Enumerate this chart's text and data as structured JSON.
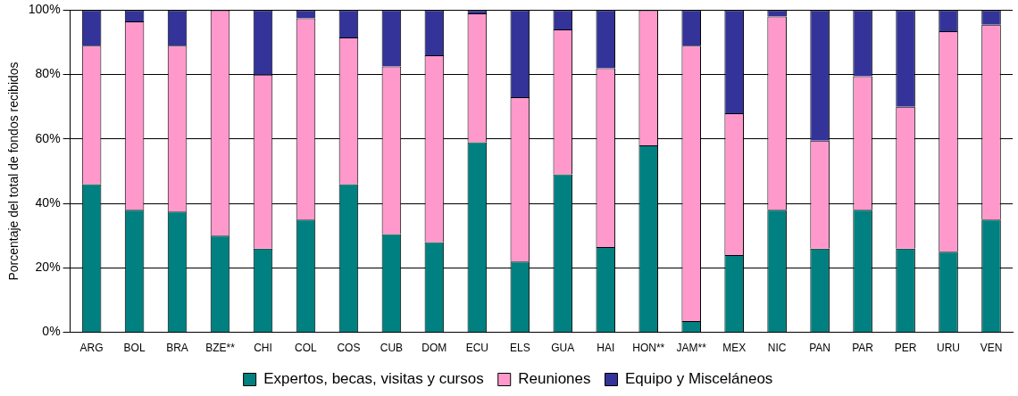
{
  "chart_data": {
    "type": "bar",
    "stacked": true,
    "ylabel": "Porcentaje del total de fondos recibidos",
    "categories": [
      "ARG",
      "BOL",
      "BRA",
      "BZE**",
      "CHI",
      "COL",
      "COS",
      "CUB",
      "DOM",
      "ECU",
      "ELS",
      "GUA",
      "HAI",
      "HON**",
      "JAM**",
      "MEX",
      "NIC",
      "PAN",
      "PAR",
      "PER",
      "URU",
      "VEN"
    ],
    "series": [
      {
        "name": "Expertos, becas, visitas y cursos",
        "color": "#008080",
        "values": [
          46,
          38,
          37.5,
          30,
          26,
          35,
          46,
          30.5,
          28,
          59,
          22,
          49,
          26.5,
          58,
          3.5,
          24,
          38,
          26,
          38,
          26,
          25,
          35
        ]
      },
      {
        "name": "Reuniones",
        "color": "#ff99cc",
        "values": [
          43,
          58.5,
          51.5,
          70,
          54,
          62.5,
          45.5,
          52,
          58,
          40,
          51,
          45,
          55.5,
          42,
          85.5,
          44,
          60,
          33.5,
          41.5,
          44,
          68.5,
          60.5
        ]
      },
      {
        "name": "Equipo y Misceláneos",
        "color": "#333399",
        "values": [
          11,
          3.5,
          11,
          0,
          20,
          2.5,
          8.5,
          17.5,
          14,
          1,
          27,
          6,
          18,
          0,
          11,
          32,
          2,
          40.5,
          20.5,
          30,
          6.5,
          4.5
        ]
      }
    ],
    "ylim": [
      0,
      100
    ],
    "yticks": [
      {
        "value": 0,
        "label": "0%"
      },
      {
        "value": 20,
        "label": "20%"
      },
      {
        "value": 40,
        "label": "40%"
      },
      {
        "value": 60,
        "label": "60%"
      },
      {
        "value": 80,
        "label": "80%"
      },
      {
        "value": 100,
        "label": "100%"
      }
    ],
    "grid": "y",
    "legend": "bottom"
  }
}
